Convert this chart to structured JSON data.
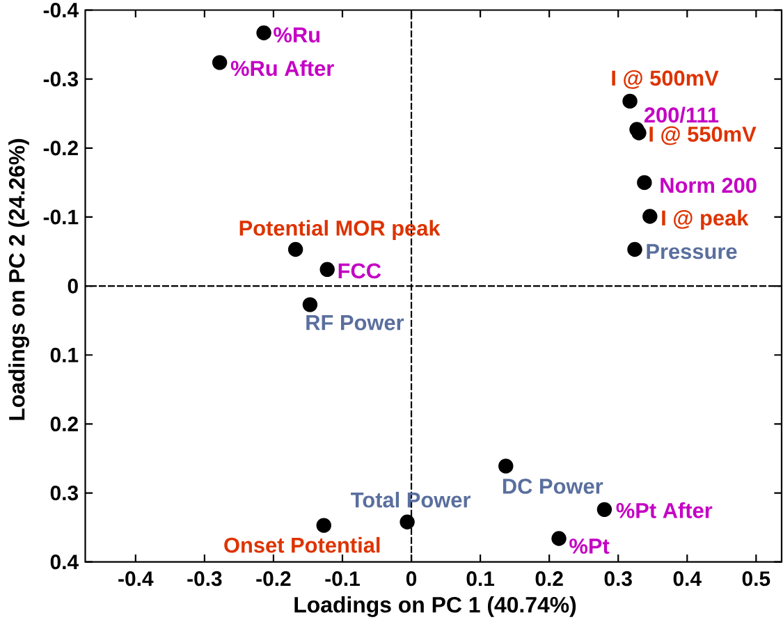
{
  "chart_data": {
    "type": "scatter",
    "xlabel": "Loadings on PC 1 (40.74%)",
    "ylabel": "Loadings on PC 2 (24.26%)",
    "x": [
      -0.214,
      -0.278,
      0.317,
      0.327,
      0.33,
      0.338,
      0.346,
      0.324,
      -0.168,
      -0.122,
      -0.147,
      0.137,
      -0.006,
      0.28,
      -0.127,
      0.214
    ],
    "values": [
      -0.367,
      -0.324,
      -0.268,
      -0.227,
      -0.222,
      -0.15,
      -0.101,
      -0.053,
      -0.053,
      -0.024,
      0.027,
      0.261,
      0.342,
      0.324,
      0.347,
      0.366
    ],
    "color": "#000000",
    "marker": "circle",
    "xlim": [
      -0.473,
      0.537
    ],
    "ylim": [
      0.4,
      -0.4
    ],
    "xticks": [
      -0.4,
      -0.3,
      -0.2,
      -0.1,
      0,
      0.1,
      0.2,
      0.3,
      0.4,
      0.5
    ],
    "yticks": [
      -0.4,
      -0.3,
      -0.2,
      -0.1,
      0,
      0.1,
      0.2,
      0.3,
      0.4
    ],
    "ref_lines": [
      {
        "axis": "x",
        "value": 0,
        "color": "#000000",
        "line_style": "dashed"
      },
      {
        "axis": "y",
        "value": 0,
        "color": "#000000",
        "line_style": "dashed"
      }
    ],
    "annotations": [
      {
        "text": "%Ru",
        "x": -0.214,
        "y": -0.367
      },
      {
        "text": "%Ru After",
        "x": -0.278,
        "y": -0.324
      },
      {
        "text": "I @ 500mV",
        "x": 0.317,
        "y": -0.268
      },
      {
        "text": "200/111",
        "x": 0.327,
        "y": -0.227
      },
      {
        "text": "I @ 550mV",
        "x": 0.33,
        "y": -0.222
      },
      {
        "text": "Norm 200",
        "x": 0.338,
        "y": -0.15
      },
      {
        "text": "I @ peak",
        "x": 0.346,
        "y": -0.101
      },
      {
        "text": "Pressure",
        "x": 0.324,
        "y": -0.053
      },
      {
        "text": "Potential MOR peak",
        "x": -0.168,
        "y": -0.053
      },
      {
        "text": "FCC",
        "x": -0.122,
        "y": -0.024
      },
      {
        "text": "RF Power",
        "x": -0.147,
        "y": 0.027
      },
      {
        "text": "DC Power",
        "x": 0.137,
        "y": 0.261
      },
      {
        "text": "Total Power",
        "x": -0.006,
        "y": 0.342
      },
      {
        "text": "%Pt After",
        "x": 0.28,
        "y": 0.324
      },
      {
        "text": "Onset Potential",
        "x": -0.127,
        "y": 0.347
      },
      {
        "text": "%Pt",
        "x": 0.214,
        "y": 0.366
      }
    ]
  }
}
